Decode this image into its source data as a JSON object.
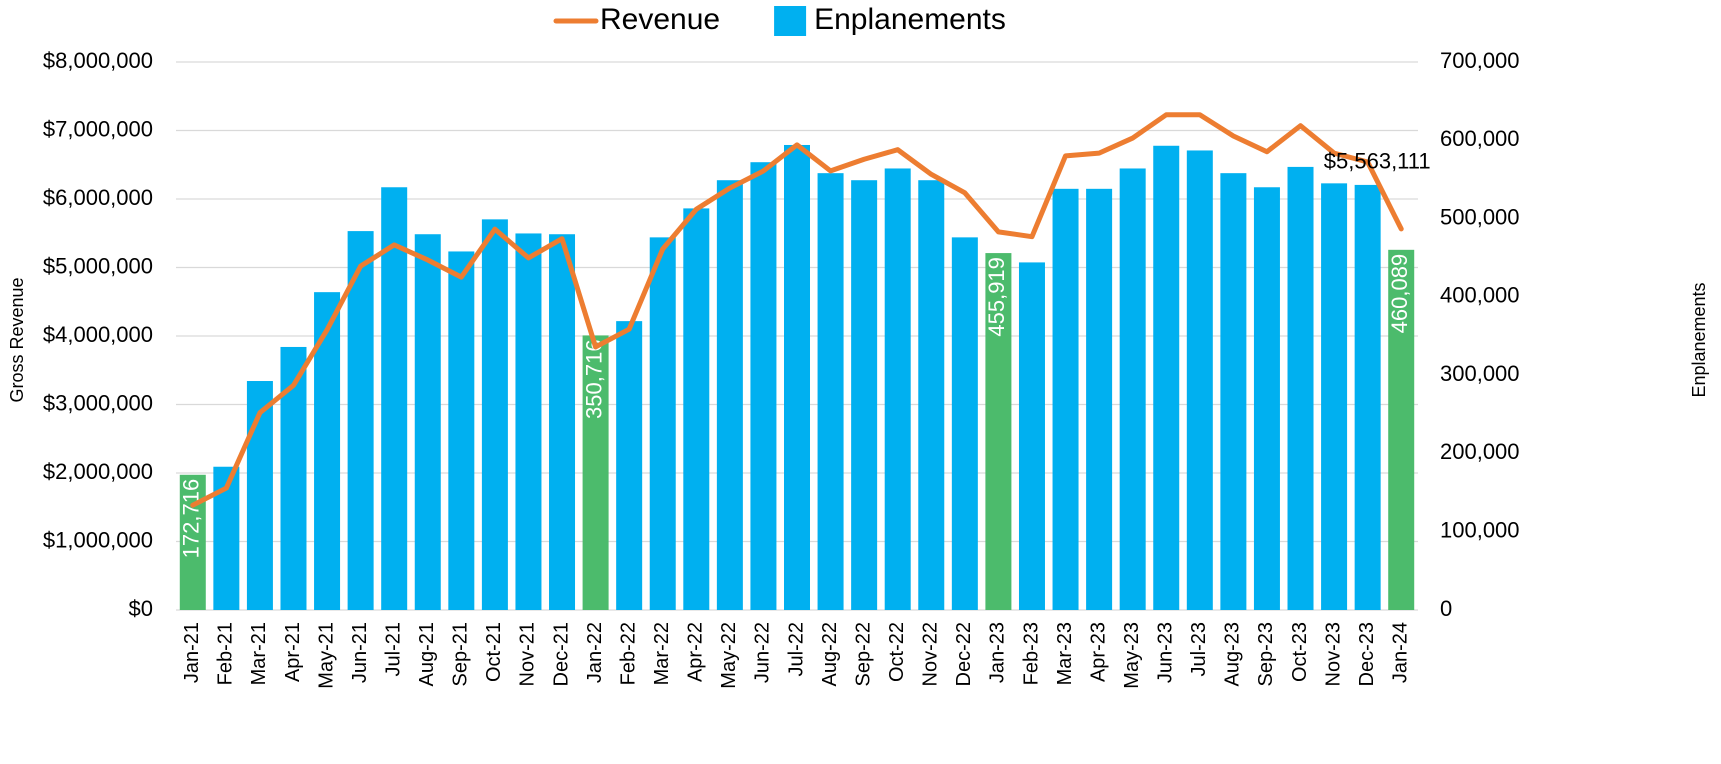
{
  "chart_data": {
    "type": "bar",
    "y_label": "Gross Revenue",
    "y2_label": "Enplanements",
    "categories": [
      "Jan-21",
      "Feb-21",
      "Mar-21",
      "Apr-21",
      "May-21",
      "Jun-21",
      "Jul-21",
      "Aug-21",
      "Sep-21",
      "Oct-21",
      "Nov-21",
      "Dec-21",
      "Jan-22",
      "Feb-22",
      "Mar-22",
      "Apr-22",
      "May-22",
      "Jun-22",
      "Jul-22",
      "Aug-22",
      "Sep-22",
      "Oct-22",
      "Nov-22",
      "Dec-22",
      "Jan-23",
      "Feb-23",
      "Mar-23",
      "Apr-23",
      "May-23",
      "Jun-23",
      "Jul-23",
      "Aug-23",
      "Sep-23",
      "Oct-23",
      "Nov-23",
      "Dec-23",
      "Jan-24"
    ],
    "series": [
      {
        "name": "Revenue",
        "type": "line",
        "color": "#ed7d31",
        "axis": "y",
        "values": [
          1530000,
          1780000,
          2880000,
          3280000,
          4090000,
          5020000,
          5330000,
          5110000,
          4860000,
          5560000,
          5140000,
          5420000,
          3840000,
          4100000,
          5270000,
          5850000,
          6160000,
          6410000,
          6790000,
          6410000,
          6580000,
          6720000,
          6360000,
          6090000,
          5520000,
          5450000,
          6630000,
          6670000,
          6890000,
          7230000,
          7230000,
          6920000,
          6690000,
          7070000,
          6670000,
          6540000,
          5563111
        ],
        "value_labels": [
          null,
          null,
          null,
          null,
          null,
          null,
          null,
          null,
          null,
          null,
          null,
          null,
          null,
          null,
          null,
          null,
          null,
          null,
          null,
          null,
          null,
          null,
          null,
          null,
          null,
          null,
          null,
          null,
          null,
          null,
          null,
          null,
          null,
          null,
          null,
          null,
          "$5,563,111"
        ]
      },
      {
        "name": "Enplanements",
        "type": "bar",
        "color": "#00b0f0",
        "axis": "y2",
        "values": [
          172716,
          183000,
          292500,
          336000,
          406000,
          484000,
          540000,
          480000,
          458000,
          499000,
          481000,
          480000,
          350716,
          369000,
          476000,
          513000,
          549000,
          572000,
          594000,
          558000,
          549000,
          564000,
          549000,
          476000,
          455919,
          444000,
          538000,
          538000,
          564000,
          593000,
          587000,
          558000,
          540000,
          566000,
          545000,
          543000,
          460089
        ],
        "colors": [
          "#4cbb6c",
          "#00b0f0",
          "#00b0f0",
          "#00b0f0",
          "#00b0f0",
          "#00b0f0",
          "#00b0f0",
          "#00b0f0",
          "#00b0f0",
          "#00b0f0",
          "#00b0f0",
          "#00b0f0",
          "#4cbb6c",
          "#00b0f0",
          "#00b0f0",
          "#00b0f0",
          "#00b0f0",
          "#00b0f0",
          "#00b0f0",
          "#00b0f0",
          "#00b0f0",
          "#00b0f0",
          "#00b0f0",
          "#00b0f0",
          "#4cbb6c",
          "#00b0f0",
          "#00b0f0",
          "#00b0f0",
          "#00b0f0",
          "#00b0f0",
          "#00b0f0",
          "#00b0f0",
          "#00b0f0",
          "#00b0f0",
          "#00b0f0",
          "#00b0f0",
          "#4cbb6c"
        ],
        "value_labels": [
          "172,716",
          null,
          null,
          null,
          null,
          null,
          null,
          null,
          null,
          null,
          null,
          null,
          "350,716",
          null,
          null,
          null,
          null,
          null,
          null,
          null,
          null,
          null,
          null,
          null,
          "455,919",
          null,
          null,
          null,
          null,
          null,
          null,
          null,
          null,
          null,
          null,
          null,
          "460,089"
        ]
      }
    ],
    "ylim": [
      0,
      8000000
    ],
    "yticks": [
      {
        "value": 0,
        "label": "$0"
      },
      {
        "value": 1000000,
        "label": "$1,000,000"
      },
      {
        "value": 2000000,
        "label": "$2,000,000"
      },
      {
        "value": 3000000,
        "label": "$3,000,000"
      },
      {
        "value": 4000000,
        "label": "$4,000,000"
      },
      {
        "value": 5000000,
        "label": "$5,000,000"
      },
      {
        "value": 6000000,
        "label": "$6,000,000"
      },
      {
        "value": 7000000,
        "label": "$7,000,000"
      },
      {
        "value": 8000000,
        "label": "$8,000,000"
      }
    ],
    "y2lim": [
      0,
      700000
    ],
    "y2ticks": [
      0,
      {
        "value": 100000,
        "label": "100,000"
      },
      {
        "value": 200000,
        "label": "200,000"
      },
      {
        "value": 300000,
        "label": "300,000"
      },
      {
        "value": 400000,
        "label": "400,000"
      },
      {
        "value": 500000,
        "label": "500,000"
      },
      {
        "value": 600000,
        "label": "600,000"
      },
      {
        "value": 700000,
        "label": "700,000"
      }
    ],
    "grid": true,
    "legend": "top"
  }
}
